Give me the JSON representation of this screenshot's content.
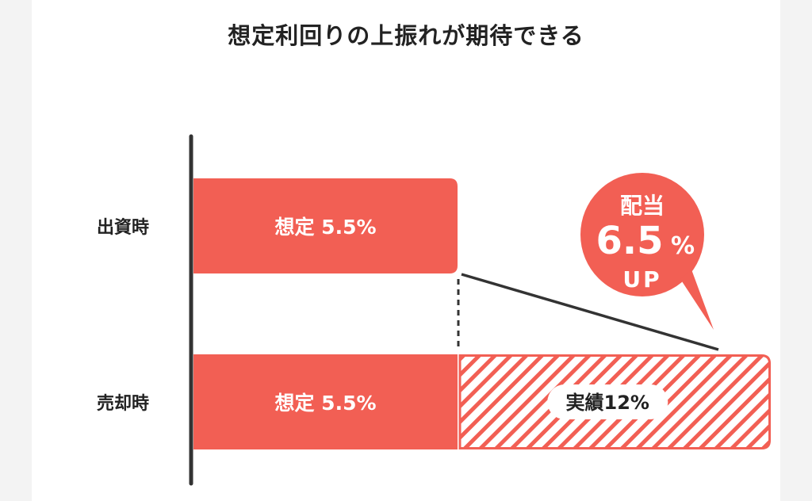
{
  "title": "想定利回りの上振れが期待できる",
  "colors": {
    "accent": "#f25f54",
    "text": "#222222",
    "axis": "#333333",
    "white": "#ffffff"
  },
  "chart_data": {
    "type": "bar",
    "orientation": "horizontal",
    "stacked": true,
    "categories": [
      "出資時",
      "売却時"
    ],
    "series": [
      {
        "values": [
          5.5,
          5.5
        ],
        "labels": [
          "想定 5.5%",
          "想定 5.5%"
        ],
        "style": "solid"
      },
      {
        "values": [
          0,
          6.5
        ],
        "labels": [
          "",
          "実績12%"
        ],
        "style": "hatched"
      }
    ],
    "xlim": [
      0,
      12
    ],
    "callout": {
      "line1": "配当",
      "value": "6.5",
      "unit": "%",
      "line2": "UP"
    }
  }
}
